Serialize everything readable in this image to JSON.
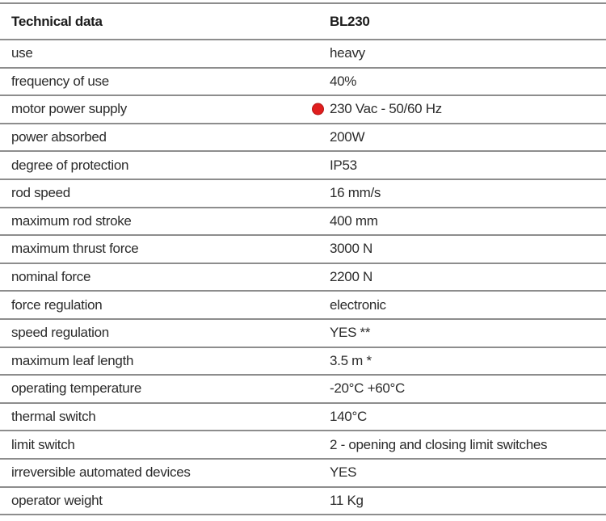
{
  "table": {
    "header": {
      "label_col": "Technical data",
      "value_col": "BL230"
    },
    "marker_color": "#e01e1e",
    "marker_border_color": "#b31515",
    "rule_color": "#8d8d8d",
    "rows": [
      {
        "label": "use",
        "value": "heavy",
        "marker": false
      },
      {
        "label": "frequency of use",
        "value": "40%",
        "marker": false
      },
      {
        "label": "motor power supply",
        "value": "230 Vac - 50/60 Hz",
        "marker": true
      },
      {
        "label": "power absorbed",
        "value": "200W",
        "marker": false
      },
      {
        "label": "degree of protection",
        "value": "IP53",
        "marker": false
      },
      {
        "label": "rod speed",
        "value": "16 mm/s",
        "marker": false
      },
      {
        "label": "maximum rod stroke",
        "value": "400 mm",
        "marker": false
      },
      {
        "label": "maximum thrust force",
        "value": "3000 N",
        "marker": false
      },
      {
        "label": "nominal force",
        "value": "2200 N",
        "marker": false
      },
      {
        "label": "force regulation",
        "value": "electronic",
        "marker": false
      },
      {
        "label": "speed regulation",
        "value": "YES **",
        "marker": false
      },
      {
        "label": "maximum leaf length",
        "value": "3.5 m *",
        "marker": false
      },
      {
        "label": "operating temperature",
        "value": "-20°C +60°C",
        "marker": false
      },
      {
        "label": "thermal switch",
        "value": "140°C",
        "marker": false
      },
      {
        "label": "limit switch",
        "value": "2 - opening and closing limit switches",
        "marker": false
      },
      {
        "label": "irreversible automated devices",
        "value": "YES",
        "marker": false
      },
      {
        "label": "operator weight",
        "value": "11 Kg",
        "marker": false
      }
    ]
  }
}
